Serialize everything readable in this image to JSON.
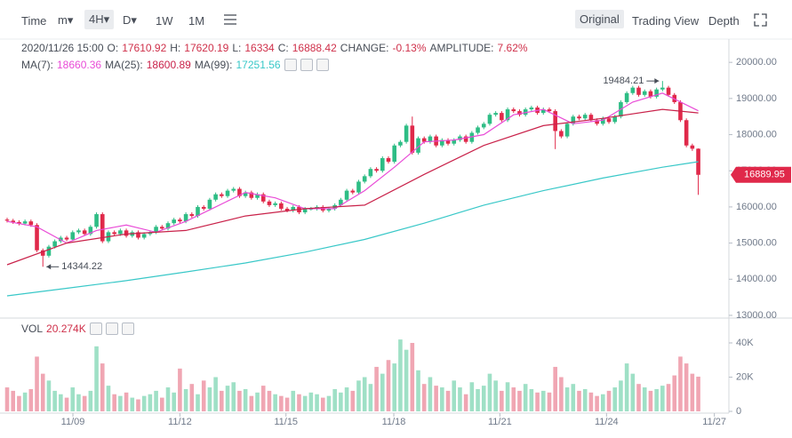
{
  "toolbar": {
    "left": [
      "Time",
      "m▾",
      "4H▾",
      "D▾",
      "1W",
      "1M"
    ],
    "right": [
      "Original",
      "Trading View",
      "Depth"
    ]
  },
  "chart_data": {
    "type": "candlestick",
    "info": {
      "time": "2020/11/26 15:00",
      "labels": [
        "O:",
        "H:",
        "L:",
        "C:",
        "CHANGE:",
        "AMPLITUDE:"
      ],
      "change": {
        "value": -0.13,
        "label": "-0.13%"
      },
      "amplitude": {
        "value": 7.62,
        "label": "7.62%"
      }
    },
    "open": [
      15650,
      15620,
      15580,
      15540,
      15600,
      15500,
      14800,
      14650,
      14900,
      15050,
      15150,
      15100,
      15300,
      15350,
      15250,
      15450,
      15800,
      15050,
      15300,
      15250,
      15350,
      15200,
      15300,
      15150,
      15250,
      15300,
      15450,
      15400,
      15550,
      15650,
      15600,
      15800,
      15750,
      16000,
      15950,
      16200,
      16350,
      16300,
      16450,
      16500,
      16300,
      16400,
      16250,
      16350,
      16150,
      16050,
      16100,
      15950,
      15900,
      16000,
      15850,
      15950,
      15950,
      16000,
      15900,
      15950,
      16050,
      16200,
      16450,
      16400,
      16700,
      16850,
      17050,
      17000,
      17350,
      17250,
      17700,
      17800,
      18250,
      17500,
      17900,
      17800,
      17950,
      17700,
      17850,
      17750,
      17850,
      17950,
      17800,
      18050,
      18200,
      18300,
      18550,
      18600,
      18400,
      18700,
      18650,
      18550,
      18700,
      18750,
      18600,
      18700,
      18650,
      18100,
      17950,
      18300,
      18500,
      18450,
      18550,
      18400,
      18300,
      18450,
      18350,
      18500,
      18900,
      19150,
      19300,
      19100,
      19200,
      19050,
      19250,
      19300,
      19100,
      18900,
      18400,
      17700,
      17610.92
    ],
    "high": [
      15700,
      15670,
      15630,
      15650,
      15650,
      15550,
      14850,
      14950,
      15100,
      15200,
      15200,
      15350,
      15400,
      15400,
      15500,
      15850,
      15850,
      15350,
      15350,
      15400,
      15400,
      15350,
      15350,
      15300,
      15350,
      15500,
      15500,
      15600,
      15700,
      15700,
      15850,
      15850,
      16050,
      16050,
      16250,
      16400,
      16400,
      16500,
      16550,
      16550,
      16450,
      16450,
      16400,
      16400,
      16200,
      16150,
      16150,
      16000,
      16050,
      16050,
      16000,
      16000,
      16050,
      16050,
      16000,
      16100,
      16250,
      16500,
      16500,
      16750,
      16900,
      17100,
      17100,
      17400,
      17400,
      17750,
      17850,
      18300,
      18500,
      17950,
      17950,
      18000,
      18000,
      17900,
      17900,
      17900,
      18000,
      18000,
      18100,
      18250,
      18350,
      18600,
      18650,
      18650,
      18750,
      18750,
      18700,
      18750,
      18800,
      18800,
      18750,
      18750,
      18700,
      18150,
      18350,
      18550,
      18550,
      18600,
      18600,
      18450,
      18500,
      18500,
      18550,
      18950,
      19200,
      19350,
      19350,
      19250,
      19250,
      19300,
      19484.21,
      19350,
      19150,
      18950,
      18450,
      17750,
      17620.19
    ],
    "low": [
      15570,
      15530,
      15490,
      15490,
      15450,
      14750,
      14344.22,
      14600,
      14850,
      15000,
      15050,
      15050,
      15250,
      15200,
      15200,
      15400,
      15000,
      15000,
      15200,
      15200,
      15150,
      15150,
      15100,
      15100,
      15200,
      15250,
      15350,
      15350,
      15500,
      15550,
      15550,
      15700,
      15700,
      15900,
      15900,
      16150,
      16250,
      16250,
      16400,
      16250,
      16250,
      16200,
      16200,
      16100,
      16000,
      16000,
      15900,
      15850,
      15850,
      15800,
      15800,
      15900,
      15900,
      15850,
      15850,
      15900,
      16000,
      16150,
      16350,
      16350,
      16650,
      16800,
      16950,
      16950,
      17200,
      17200,
      17650,
      17750,
      17450,
      17450,
      17750,
      17750,
      17650,
      17650,
      17700,
      17700,
      17800,
      17750,
      17750,
      18000,
      18150,
      18250,
      18500,
      18350,
      18350,
      18600,
      18500,
      18500,
      18650,
      18550,
      18550,
      18600,
      17600,
      17900,
      17900,
      18250,
      18400,
      18400,
      18350,
      18250,
      18250,
      18300,
      18300,
      18450,
      18850,
      19100,
      19050,
      19050,
      19000,
      19000,
      19200,
      19050,
      18850,
      18350,
      17650,
      17550,
      16334
    ],
    "close": [
      15620,
      15580,
      15540,
      15600,
      15500,
      14800,
      14650,
      14900,
      15050,
      15150,
      15100,
      15300,
      15350,
      15250,
      15450,
      15800,
      15050,
      15300,
      15250,
      15350,
      15200,
      15300,
      15150,
      15250,
      15300,
      15450,
      15400,
      15550,
      15650,
      15600,
      15800,
      15750,
      16000,
      15950,
      16200,
      16350,
      16300,
      16450,
      16500,
      16300,
      16400,
      16250,
      16350,
      16150,
      16050,
      16100,
      15950,
      15900,
      16000,
      15850,
      15950,
      15950,
      16000,
      15900,
      15950,
      16050,
      16200,
      16450,
      16400,
      16700,
      16850,
      17050,
      17000,
      17350,
      17250,
      17700,
      17800,
      18250,
      17500,
      17900,
      17800,
      17950,
      17700,
      17850,
      17750,
      17850,
      17950,
      17800,
      18050,
      18200,
      18300,
      18550,
      18600,
      18400,
      18700,
      18650,
      18550,
      18700,
      18750,
      18600,
      18700,
      18650,
      18100,
      17950,
      18300,
      18500,
      18450,
      18550,
      18400,
      18300,
      18450,
      18350,
      18500,
      18900,
      19150,
      19300,
      19100,
      19200,
      19050,
      19250,
      19300,
      19100,
      18900,
      18400,
      17700,
      17610.92,
      16888.42
    ],
    "volume": [
      14000,
      12000,
      9000,
      11000,
      13000,
      32000,
      22000,
      18000,
      12000,
      10000,
      8000,
      14000,
      10000,
      9000,
      12000,
      38000,
      28000,
      15000,
      10000,
      9000,
      11000,
      8000,
      7000,
      9000,
      10000,
      12000,
      8000,
      14000,
      11000,
      25000,
      13000,
      16000,
      10000,
      18000,
      14000,
      20000,
      12000,
      15000,
      17000,
      12000,
      13000,
      9000,
      11000,
      15000,
      12000,
      10000,
      9000,
      8000,
      12000,
      10000,
      9000,
      11000,
      10000,
      8000,
      9000,
      13000,
      11000,
      14000,
      12000,
      18000,
      20000,
      16000,
      26000,
      22000,
      30000,
      28000,
      42000,
      36000,
      40000,
      24000,
      16000,
      20000,
      15000,
      14000,
      12000,
      18000,
      14000,
      10000,
      17000,
      13000,
      15000,
      22000,
      18000,
      12000,
      17000,
      14000,
      12000,
      16000,
      13000,
      11000,
      12000,
      11000,
      26000,
      20000,
      14000,
      16000,
      12000,
      13000,
      11000,
      9000,
      10000,
      12000,
      14000,
      18000,
      28000,
      22000,
      16000,
      14000,
      12000,
      13000,
      15000,
      16000,
      21000,
      32000,
      28000,
      22000,
      20274
    ],
    "volume_name": "VOL",
    "volume_last_label": "20.274K",
    "up_color": "#2ebd85",
    "down_color": "#e0294a",
    "up_volume_color": "#9fe0c6",
    "down_volume_color": "#f0a6b3",
    "series": [
      {
        "name": "MA(7):",
        "color": "#e94cd7",
        "x": [
          0,
          5,
          10,
          15,
          20,
          25,
          30,
          35,
          40,
          45,
          50,
          55,
          60,
          65,
          70,
          75,
          80,
          85,
          90,
          95,
          100,
          105,
          110,
          116
        ],
        "values": [
          15600,
          15450,
          15000,
          15350,
          15500,
          15300,
          15600,
          16000,
          16400,
          16250,
          15950,
          15950,
          16450,
          17100,
          17800,
          17850,
          18000,
          18550,
          18700,
          18300,
          18400,
          18900,
          19150,
          18660.36
        ]
      },
      {
        "name": "MA(25):",
        "color": "#c9224a",
        "x": [
          0,
          10,
          20,
          30,
          40,
          50,
          60,
          70,
          80,
          90,
          100,
          110,
          116
        ],
        "values": [
          14400,
          15000,
          15250,
          15350,
          15750,
          15950,
          16050,
          16900,
          17700,
          18250,
          18450,
          18700,
          18600.89
        ]
      },
      {
        "name": "MA(99):",
        "color": "#39c8c8",
        "x": [
          0,
          10,
          20,
          30,
          40,
          50,
          60,
          70,
          80,
          90,
          100,
          110,
          116
        ],
        "values": [
          13540,
          13750,
          13960,
          14200,
          14450,
          14750,
          15100,
          15550,
          16050,
          16450,
          16800,
          17100,
          17251.56
        ]
      }
    ],
    "last_price": {
      "value": 16889.95,
      "label": "16889.95"
    },
    "xlim": [
      -0.45,
      118.9
    ],
    "xticks": [
      {
        "value": 11.04,
        "label": "11/09"
      },
      {
        "value": 29.0,
        "label": "11/12"
      },
      {
        "value": 46.8,
        "label": "11/15"
      },
      {
        "value": 64.9,
        "label": "11/18"
      },
      {
        "value": 82.7,
        "label": "11/21"
      },
      {
        "value": 100.6,
        "label": "11/24"
      },
      {
        "value": 118.7,
        "label": "11/27"
      }
    ],
    "ylim": [
      12950,
      20250
    ],
    "yticks": [
      {
        "value": 13000,
        "label": "13000.00"
      },
      {
        "value": 14000,
        "label": "14000.00"
      },
      {
        "value": 15000,
        "label": "15000.00"
      },
      {
        "value": 16000,
        "label": "16000.00"
      },
      {
        "value": 17000,
        "label": "17000.00"
      },
      {
        "value": 18000,
        "label": "18000.00"
      },
      {
        "value": 19000,
        "label": "19000.00"
      },
      {
        "value": 20000,
        "label": "20000.00"
      }
    ],
    "vlim": [
      0,
      45700
    ],
    "vticks": [
      0,
      {
        "value": 20000,
        "label": "20K"
      },
      {
        "value": 40000,
        "label": "40K"
      }
    ]
  }
}
